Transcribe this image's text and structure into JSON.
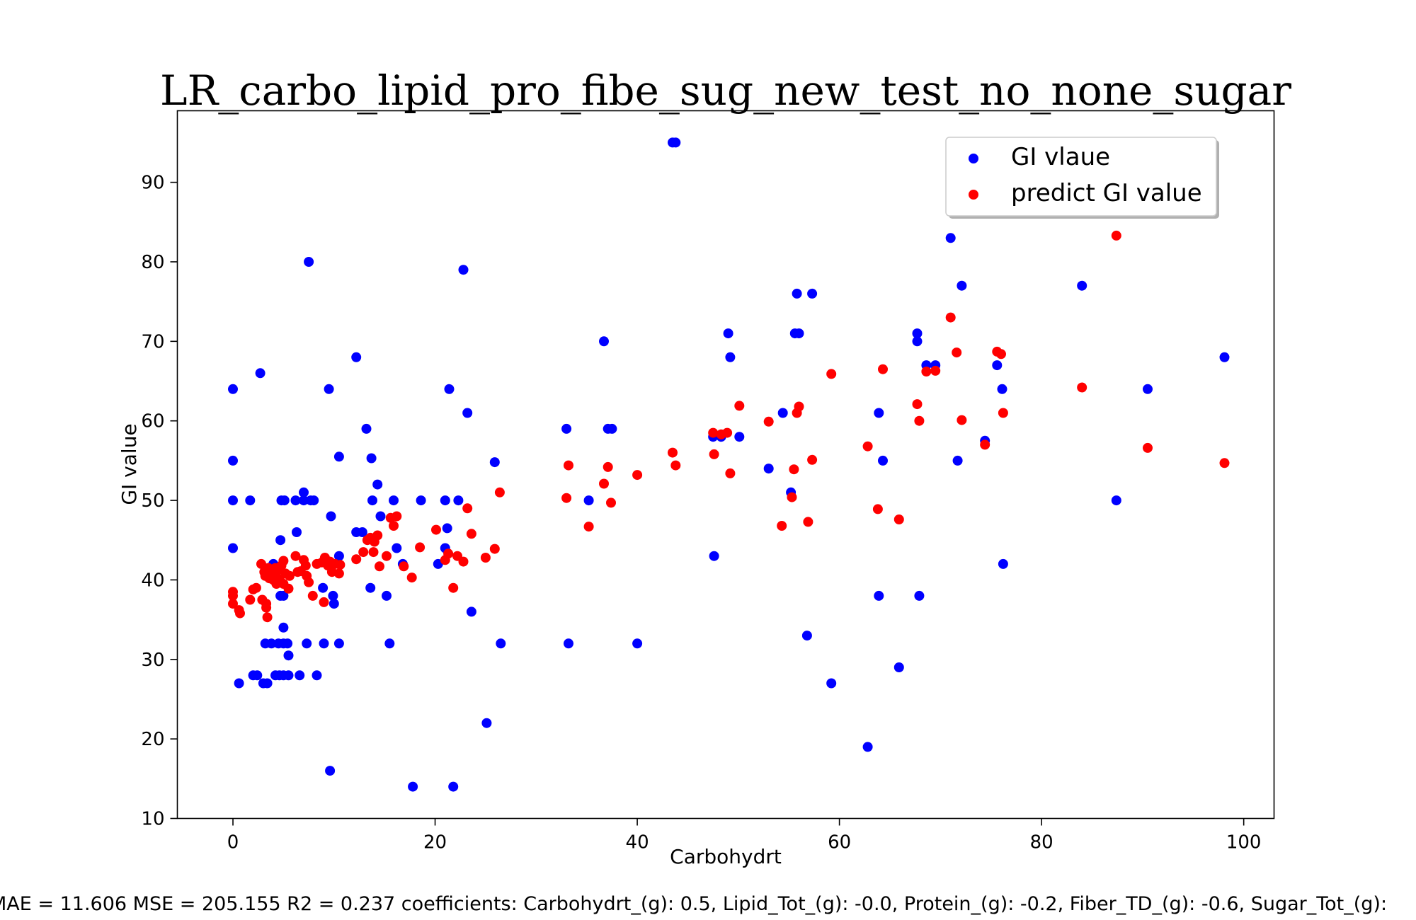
{
  "chart_data": {
    "type": "scatter",
    "title": "LR_carbo_lipid_pro_fibe_sug_new_test_no_none_sugar",
    "xlabel": "Carbohydrt",
    "ylabel": "GI value",
    "xlim": [
      -5.5,
      103
    ],
    "ylim": [
      10,
      99
    ],
    "xticks": [
      0,
      20,
      40,
      60,
      80,
      100
    ],
    "yticks": [
      10,
      20,
      30,
      40,
      50,
      60,
      70,
      80,
      90
    ],
    "legend_position": "top-right",
    "grid": false,
    "footer": "MAE = 11.606 MSE = 205.155 R2 = 0.237 coefficients: Carbohydrt_(g): 0.5, Lipid_Tot_(g): -0.0, Protein_(g): -0.2, Fiber_TD_(g): -0.6, Sugar_Tot_(g): ",
    "series": [
      {
        "name": "GI vlaue",
        "color": "#0000ff",
        "points": [
          [
            0,
            64
          ],
          [
            0,
            55
          ],
          [
            0,
            50
          ],
          [
            0,
            44
          ],
          [
            0.6,
            27
          ],
          [
            1.7,
            50
          ],
          [
            2,
            28
          ],
          [
            2.4,
            28
          ],
          [
            2.7,
            66
          ],
          [
            3,
            27
          ],
          [
            3.4,
            27
          ],
          [
            3.2,
            32
          ],
          [
            3.8,
            32
          ],
          [
            4,
            42
          ],
          [
            4.2,
            28
          ],
          [
            4.5,
            32
          ],
          [
            4.6,
            28
          ],
          [
            4.7,
            38
          ],
          [
            4.7,
            45
          ],
          [
            4.8,
            50
          ],
          [
            5,
            38
          ],
          [
            5,
            32
          ],
          [
            5,
            34
          ],
          [
            5,
            28
          ],
          [
            5.1,
            50
          ],
          [
            5.4,
            32
          ],
          [
            5.5,
            30.5
          ],
          [
            5.5,
            28
          ],
          [
            6.2,
            50
          ],
          [
            6.3,
            46
          ],
          [
            6.6,
            28
          ],
          [
            7,
            50
          ],
          [
            7,
            51
          ],
          [
            7.3,
            32
          ],
          [
            7.5,
            80
          ],
          [
            7.7,
            50
          ],
          [
            8,
            50
          ],
          [
            8.3,
            28
          ],
          [
            8.9,
            39
          ],
          [
            9,
            32
          ],
          [
            9.5,
            64
          ],
          [
            9.6,
            16
          ],
          [
            9.7,
            48
          ],
          [
            9.9,
            38
          ],
          [
            10,
            37
          ],
          [
            10.5,
            55.5
          ],
          [
            10.5,
            43
          ],
          [
            10.5,
            32
          ],
          [
            12.2,
            68
          ],
          [
            12.2,
            46
          ],
          [
            12.8,
            46
          ],
          [
            13.2,
            59
          ],
          [
            13.6,
            39
          ],
          [
            13.7,
            55.3
          ],
          [
            13.8,
            50
          ],
          [
            14.3,
            52
          ],
          [
            14.6,
            48
          ],
          [
            15.2,
            38
          ],
          [
            15.5,
            32
          ],
          [
            15.9,
            50
          ],
          [
            16.2,
            44
          ],
          [
            16.8,
            42
          ],
          [
            17.8,
            14
          ],
          [
            18.6,
            50
          ],
          [
            20.3,
            42
          ],
          [
            21,
            44
          ],
          [
            21,
            50
          ],
          [
            21.2,
            46.5
          ],
          [
            21.4,
            64
          ],
          [
            21.8,
            14
          ],
          [
            22.3,
            50
          ],
          [
            22.8,
            79
          ],
          [
            23.2,
            61
          ],
          [
            23.6,
            36
          ],
          [
            25.1,
            22
          ],
          [
            25.9,
            54.8
          ],
          [
            26.5,
            32
          ],
          [
            33,
            59
          ],
          [
            33.2,
            32
          ],
          [
            35.2,
            50
          ],
          [
            36.7,
            70
          ],
          [
            37.1,
            59
          ],
          [
            37.5,
            59
          ],
          [
            40,
            32
          ],
          [
            43.5,
            95
          ],
          [
            43.8,
            95
          ],
          [
            47.5,
            58
          ],
          [
            47.6,
            43
          ],
          [
            48.3,
            58
          ],
          [
            49,
            71
          ],
          [
            49.2,
            68
          ],
          [
            50.1,
            58
          ],
          [
            53,
            54
          ],
          [
            54.4,
            61
          ],
          [
            55.2,
            51
          ],
          [
            55.6,
            71
          ],
          [
            55.8,
            76
          ],
          [
            56,
            71
          ],
          [
            56.8,
            33
          ],
          [
            57.3,
            76
          ],
          [
            59.2,
            27
          ],
          [
            62.8,
            19
          ],
          [
            63.9,
            61
          ],
          [
            64.3,
            55
          ],
          [
            63.9,
            38
          ],
          [
            65.9,
            29
          ],
          [
            67.7,
            71
          ],
          [
            67.7,
            70
          ],
          [
            67.9,
            38
          ],
          [
            68.6,
            67
          ],
          [
            69.5,
            67
          ],
          [
            71,
            83
          ],
          [
            71.7,
            55
          ],
          [
            72.1,
            77
          ],
          [
            74.4,
            57.5
          ],
          [
            75.6,
            67
          ],
          [
            76.1,
            64
          ],
          [
            76.2,
            42
          ],
          [
            84,
            77
          ],
          [
            87.4,
            50
          ],
          [
            90.5,
            64
          ],
          [
            98.1,
            68
          ]
        ]
      },
      {
        "name": "predict GI value",
        "color": "#ff0000",
        "points": [
          [
            0,
            38.5
          ],
          [
            0,
            38
          ],
          [
            0,
            37
          ],
          [
            0.6,
            36.2
          ],
          [
            0.7,
            35.8
          ],
          [
            1.7,
            37.5
          ],
          [
            2,
            38.8
          ],
          [
            2.3,
            39
          ],
          [
            2.8,
            42
          ],
          [
            2.9,
            37.5
          ],
          [
            3.1,
            41
          ],
          [
            3.2,
            40.5
          ],
          [
            3.3,
            37
          ],
          [
            3.3,
            36.5
          ],
          [
            3.4,
            35.3
          ],
          [
            3.5,
            41.5
          ],
          [
            3.6,
            40.2
          ],
          [
            3.8,
            41
          ],
          [
            3.9,
            40.8
          ],
          [
            4,
            40
          ],
          [
            4.2,
            41.5
          ],
          [
            4.3,
            39.5
          ],
          [
            4.4,
            41.2
          ],
          [
            4.6,
            40.1
          ],
          [
            4.7,
            39.8
          ],
          [
            4.8,
            41.8
          ],
          [
            5,
            42.4
          ],
          [
            5,
            39.5
          ],
          [
            5.2,
            40.8
          ],
          [
            5.5,
            38.9
          ],
          [
            5.6,
            40.5
          ],
          [
            6.2,
            43
          ],
          [
            6.4,
            41
          ],
          [
            6.7,
            41.1
          ],
          [
            7,
            42.5
          ],
          [
            7.2,
            41.8
          ],
          [
            7.3,
            40.5
          ],
          [
            7.5,
            39.7
          ],
          [
            7.9,
            38
          ],
          [
            8.3,
            42
          ],
          [
            8.8,
            42.2
          ],
          [
            9,
            37.2
          ],
          [
            9.1,
            42.8
          ],
          [
            9.4,
            41.8
          ],
          [
            9.6,
            42.3
          ],
          [
            9.8,
            41
          ],
          [
            10.1,
            42
          ],
          [
            10.5,
            40.8
          ],
          [
            10.6,
            41.9
          ],
          [
            12.2,
            42.6
          ],
          [
            12.9,
            43.5
          ],
          [
            13.3,
            45
          ],
          [
            13.6,
            45.3
          ],
          [
            13.9,
            43.5
          ],
          [
            14,
            44.8
          ],
          [
            14.3,
            45.6
          ],
          [
            14.5,
            41.7
          ],
          [
            15.2,
            43
          ],
          [
            15.6,
            47.8
          ],
          [
            15.9,
            46.8
          ],
          [
            16.2,
            48
          ],
          [
            16.9,
            41.7
          ],
          [
            17.7,
            40.3
          ],
          [
            18.5,
            44.1
          ],
          [
            20.1,
            46.3
          ],
          [
            21,
            42.5
          ],
          [
            21.3,
            43.3
          ],
          [
            21.8,
            39
          ],
          [
            22.2,
            43
          ],
          [
            22.8,
            42.3
          ],
          [
            23.2,
            49
          ],
          [
            23.6,
            45.8
          ],
          [
            25,
            42.8
          ],
          [
            25.9,
            43.9
          ],
          [
            26.4,
            51
          ],
          [
            33,
            50.3
          ],
          [
            33.2,
            54.4
          ],
          [
            35.2,
            46.7
          ],
          [
            36.7,
            52.1
          ],
          [
            37.1,
            54.2
          ],
          [
            37.4,
            49.7
          ],
          [
            40,
            53.2
          ],
          [
            43.5,
            56
          ],
          [
            43.8,
            54.4
          ],
          [
            47.5,
            58.5
          ],
          [
            47.6,
            55.8
          ],
          [
            48.3,
            58.3
          ],
          [
            48.9,
            58.5
          ],
          [
            49.2,
            53.4
          ],
          [
            50.1,
            61.9
          ],
          [
            53,
            59.9
          ],
          [
            54.3,
            46.8
          ],
          [
            55.3,
            50.4
          ],
          [
            55.5,
            53.9
          ],
          [
            55.8,
            61
          ],
          [
            56,
            61.8
          ],
          [
            56.9,
            47.3
          ],
          [
            57.3,
            55.1
          ],
          [
            59.2,
            65.9
          ],
          [
            62.8,
            56.8
          ],
          [
            63.8,
            48.9
          ],
          [
            64.3,
            66.5
          ],
          [
            65.9,
            47.6
          ],
          [
            67.7,
            62.1
          ],
          [
            67.9,
            60
          ],
          [
            68.6,
            66.2
          ],
          [
            69.5,
            66.3
          ],
          [
            71,
            73
          ],
          [
            71.6,
            68.6
          ],
          [
            72.1,
            60.1
          ],
          [
            74.4,
            57
          ],
          [
            75.6,
            68.7
          ],
          [
            76,
            68.4
          ],
          [
            76.2,
            61
          ],
          [
            84,
            64.2
          ],
          [
            87.4,
            83.3
          ],
          [
            90.5,
            56.6
          ],
          [
            98.1,
            54.7
          ]
        ]
      }
    ]
  }
}
